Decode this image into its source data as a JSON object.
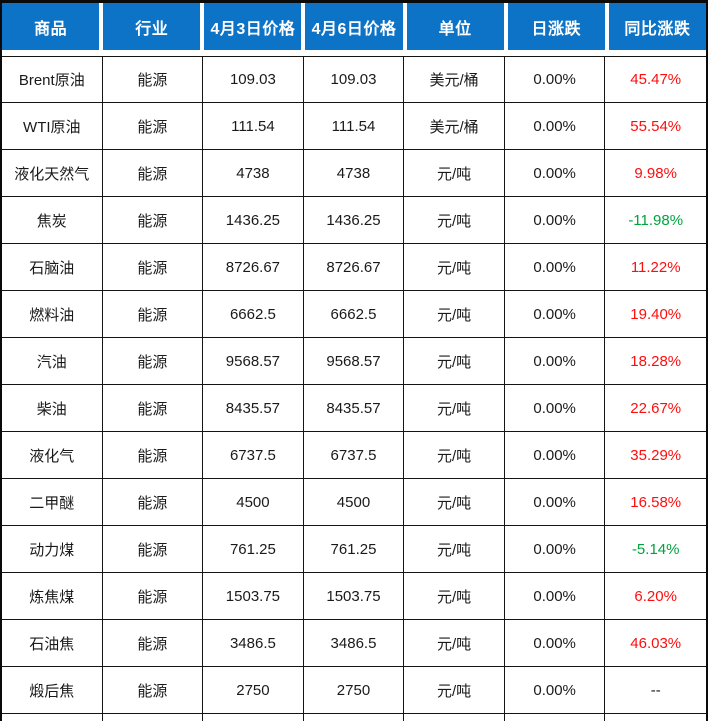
{
  "chart_data": {
    "type": "table",
    "columns": [
      "商品",
      "行业",
      "4月3日价格",
      "4月6日价格",
      "单位",
      "日涨跌",
      "同比涨跌"
    ],
    "rows": [
      {
        "commodity": "Brent原油",
        "industry": "能源",
        "price_apr3": "109.03",
        "price_apr6": "109.03",
        "unit": "美元/桶",
        "daily_change": "0.00%",
        "yoy_change": "45.47%",
        "yoy_direction": "up"
      },
      {
        "commodity": "WTI原油",
        "industry": "能源",
        "price_apr3": "111.54",
        "price_apr6": "111.54",
        "unit": "美元/桶",
        "daily_change": "0.00%",
        "yoy_change": "55.54%",
        "yoy_direction": "up"
      },
      {
        "commodity": "液化天然气",
        "industry": "能源",
        "price_apr3": "4738",
        "price_apr6": "4738",
        "unit": "元/吨",
        "daily_change": "0.00%",
        "yoy_change": "9.98%",
        "yoy_direction": "up"
      },
      {
        "commodity": "焦炭",
        "industry": "能源",
        "price_apr3": "1436.25",
        "price_apr6": "1436.25",
        "unit": "元/吨",
        "daily_change": "0.00%",
        "yoy_change": "-11.98%",
        "yoy_direction": "down"
      },
      {
        "commodity": "石脑油",
        "industry": "能源",
        "price_apr3": "8726.67",
        "price_apr6": "8726.67",
        "unit": "元/吨",
        "daily_change": "0.00%",
        "yoy_change": "11.22%",
        "yoy_direction": "up"
      },
      {
        "commodity": "燃料油",
        "industry": "能源",
        "price_apr3": "6662.5",
        "price_apr6": "6662.5",
        "unit": "元/吨",
        "daily_change": "0.00%",
        "yoy_change": "19.40%",
        "yoy_direction": "up"
      },
      {
        "commodity": "汽油",
        "industry": "能源",
        "price_apr3": "9568.57",
        "price_apr6": "9568.57",
        "unit": "元/吨",
        "daily_change": "0.00%",
        "yoy_change": "18.28%",
        "yoy_direction": "up"
      },
      {
        "commodity": "柴油",
        "industry": "能源",
        "price_apr3": "8435.57",
        "price_apr6": "8435.57",
        "unit": "元/吨",
        "daily_change": "0.00%",
        "yoy_change": "22.67%",
        "yoy_direction": "up"
      },
      {
        "commodity": "液化气",
        "industry": "能源",
        "price_apr3": "6737.5",
        "price_apr6": "6737.5",
        "unit": "元/吨",
        "daily_change": "0.00%",
        "yoy_change": "35.29%",
        "yoy_direction": "up"
      },
      {
        "commodity": "二甲醚",
        "industry": "能源",
        "price_apr3": "4500",
        "price_apr6": "4500",
        "unit": "元/吨",
        "daily_change": "0.00%",
        "yoy_change": "16.58%",
        "yoy_direction": "up"
      },
      {
        "commodity": "动力煤",
        "industry": "能源",
        "price_apr3": "761.25",
        "price_apr6": "761.25",
        "unit": "元/吨",
        "daily_change": "0.00%",
        "yoy_change": "-5.14%",
        "yoy_direction": "down"
      },
      {
        "commodity": "炼焦煤",
        "industry": "能源",
        "price_apr3": "1503.75",
        "price_apr6": "1503.75",
        "unit": "元/吨",
        "daily_change": "0.00%",
        "yoy_change": "6.20%",
        "yoy_direction": "up"
      },
      {
        "commodity": "石油焦",
        "industry": "能源",
        "price_apr3": "3486.5",
        "price_apr6": "3486.5",
        "unit": "元/吨",
        "daily_change": "0.00%",
        "yoy_change": "46.03%",
        "yoy_direction": "up"
      },
      {
        "commodity": "煅后焦",
        "industry": "能源",
        "price_apr3": "2750",
        "price_apr6": "2750",
        "unit": "元/吨",
        "daily_change": "0.00%",
        "yoy_change": "--",
        "yoy_direction": "neutral"
      }
    ]
  },
  "colors": {
    "header_bg": "#0D73C7",
    "header_text": "#FFFFFF",
    "up": "#FF0D0D",
    "down": "#00A33E",
    "neutral": "#1A1A1A",
    "grid": "#141414"
  }
}
